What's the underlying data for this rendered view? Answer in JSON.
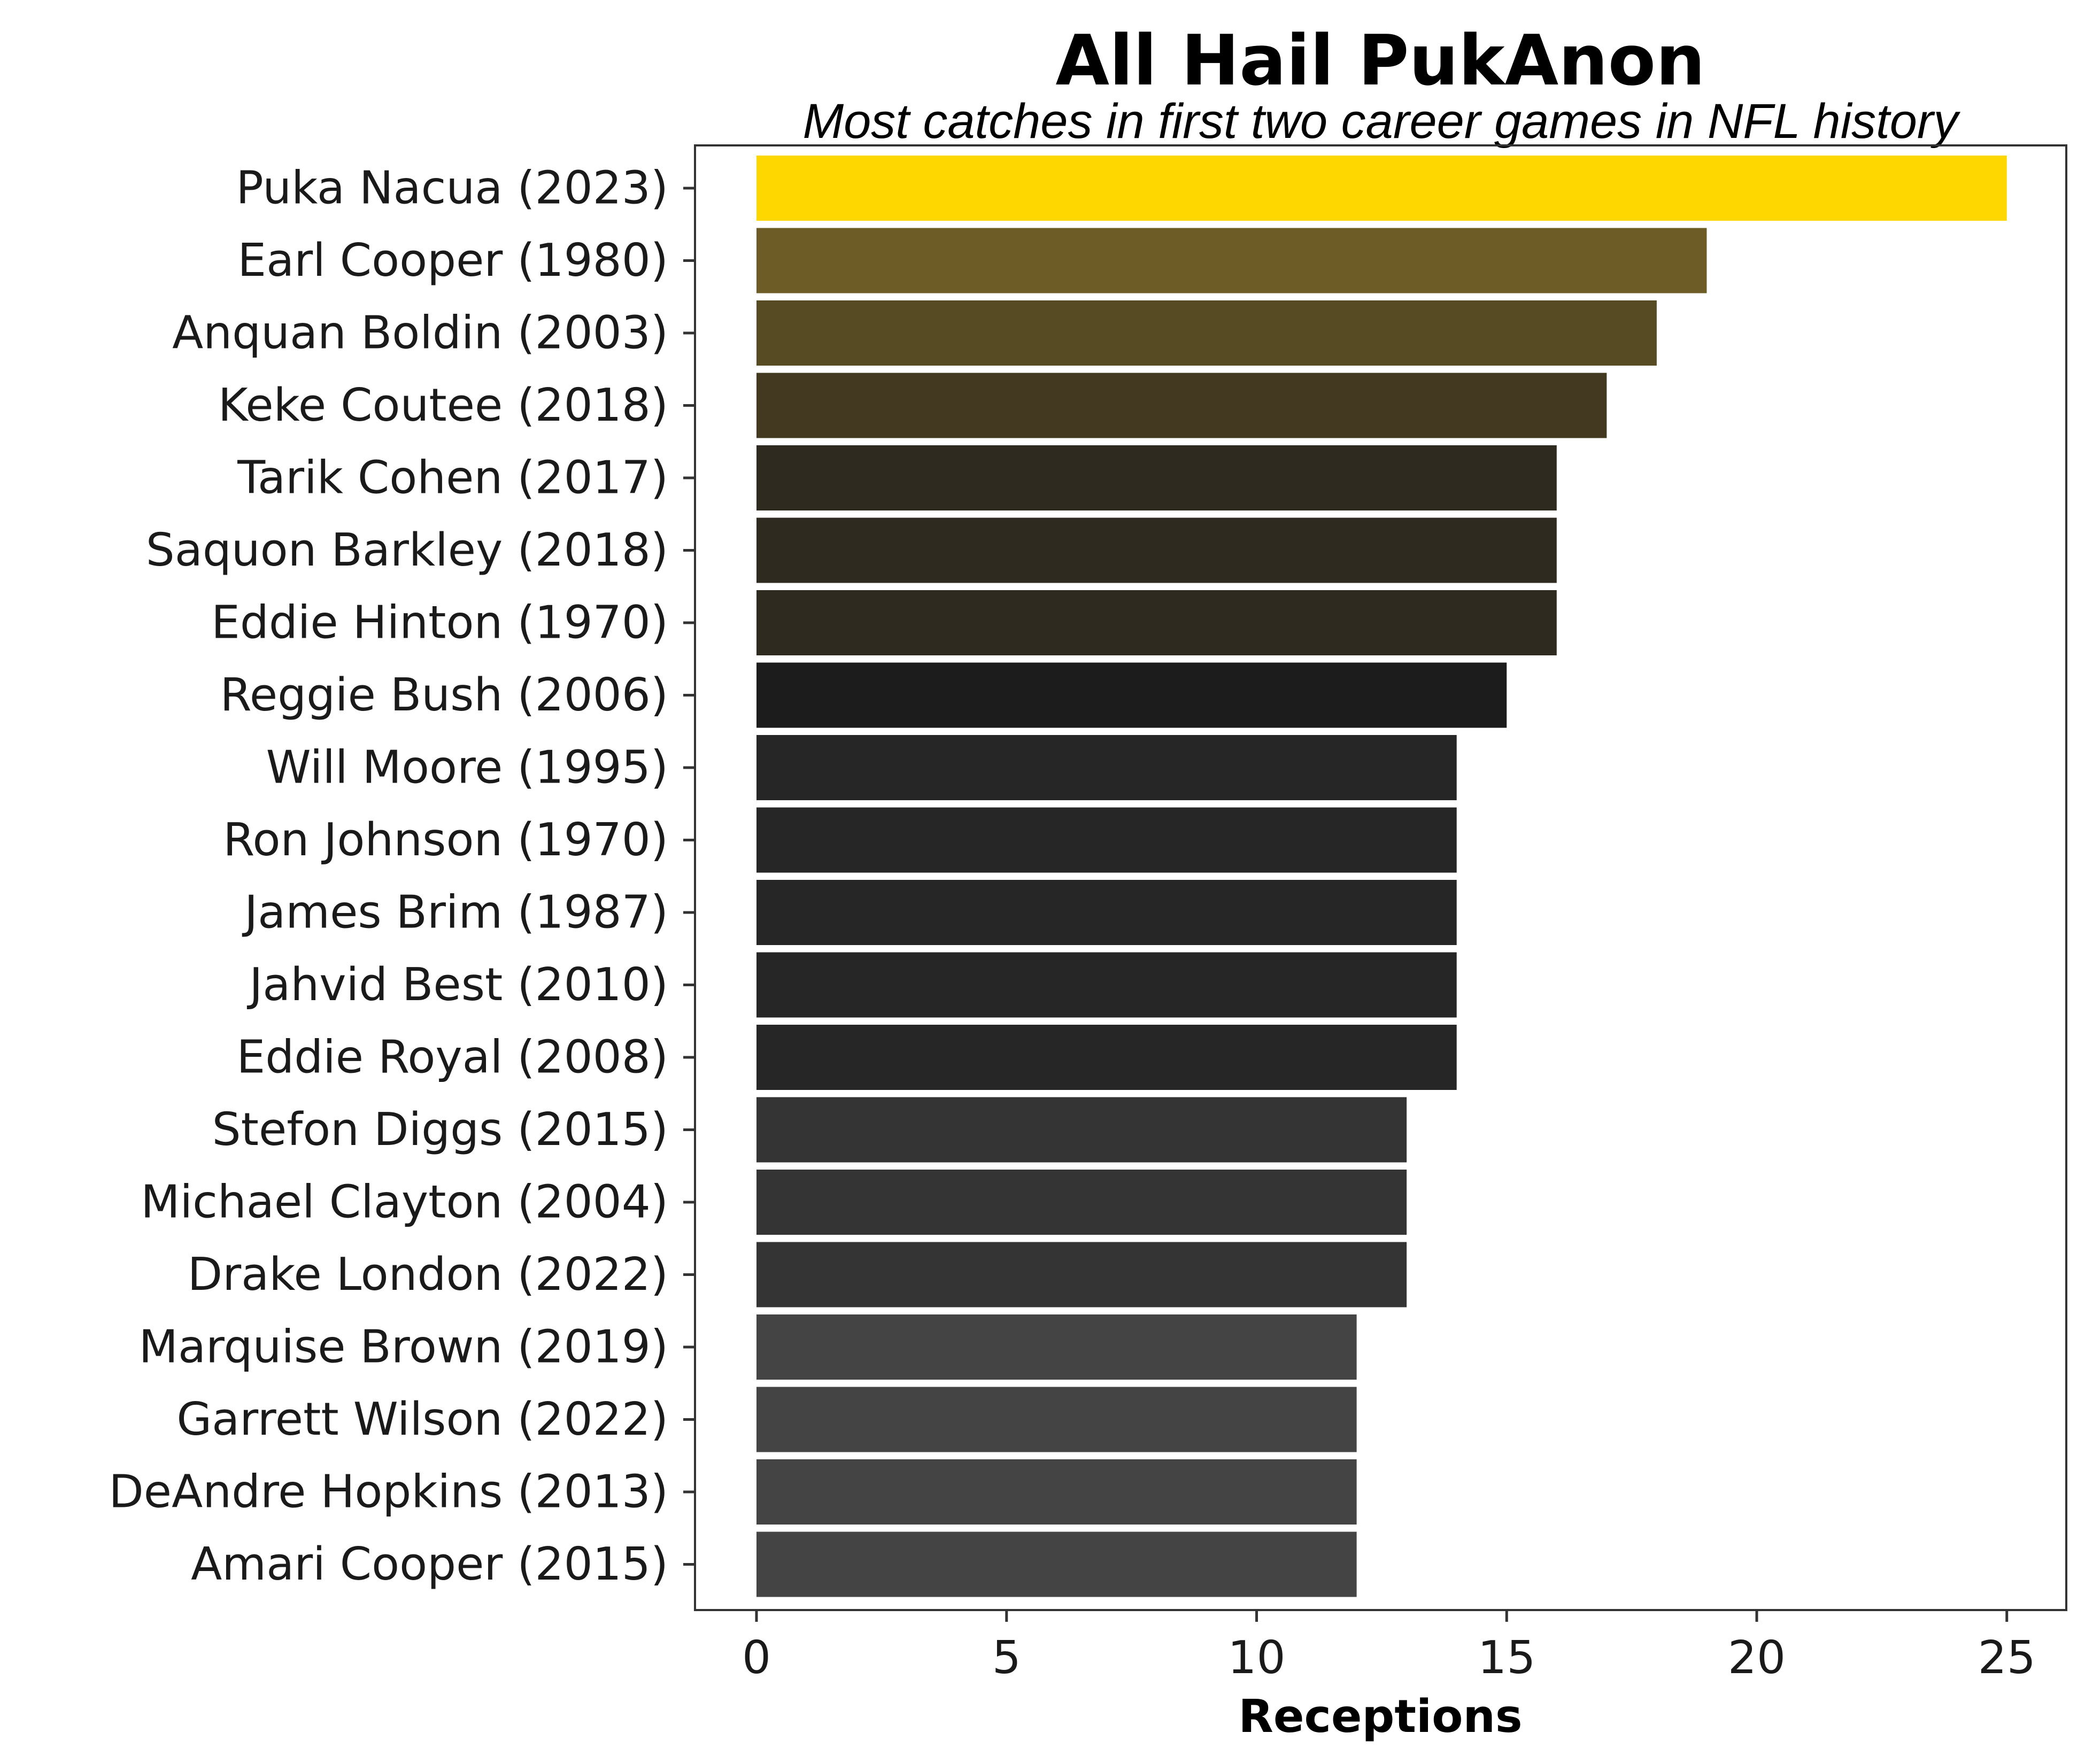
{
  "chart_data": {
    "type": "bar",
    "orientation": "horizontal",
    "title": "All Hail PukAnon",
    "subtitle": "Most catches in first two career games in NFL history",
    "xlabel": "Receptions",
    "ylabel": "",
    "xlim": [
      0,
      26.2
    ],
    "xticks": [
      0,
      5,
      10,
      15,
      20,
      25
    ],
    "grid": false,
    "legend": "none",
    "categories": [
      "Puka Nacua (2023)",
      "Earl Cooper (1980)",
      "Anquan Boldin (2003)",
      "Keke Coutee (2018)",
      "Tarik Cohen (2017)",
      "Saquon Barkley (2018)",
      "Eddie Hinton (1970)",
      "Reggie Bush (2006)",
      "Will Moore (1995)",
      "Ron Johnson (1970)",
      "James Brim (1987)",
      "Jahvid Best (2010)",
      "Eddie Royal (2008)",
      "Stefon Diggs (2015)",
      "Michael Clayton (2004)",
      "Drake London (2022)",
      "Marquise Brown (2019)",
      "Garrett Wilson (2022)",
      "DeAndre Hopkins (2013)",
      "Amari Cooper (2015)"
    ],
    "values": [
      25,
      19,
      18,
      17,
      16,
      16,
      16,
      15,
      14,
      14,
      14,
      14,
      14,
      13,
      13,
      13,
      12,
      12,
      12,
      12
    ],
    "colors": [
      "#FFD700",
      "#6E5C27",
      "#574B24",
      "#433920",
      "#2E2A1F",
      "#2E2A1F",
      "#2E2A1F",
      "#1C1C1C",
      "#262626",
      "#262626",
      "#262626",
      "#262626",
      "#262626",
      "#343434",
      "#343434",
      "#343434",
      "#444444",
      "#444444",
      "#444444",
      "#444444"
    ]
  }
}
